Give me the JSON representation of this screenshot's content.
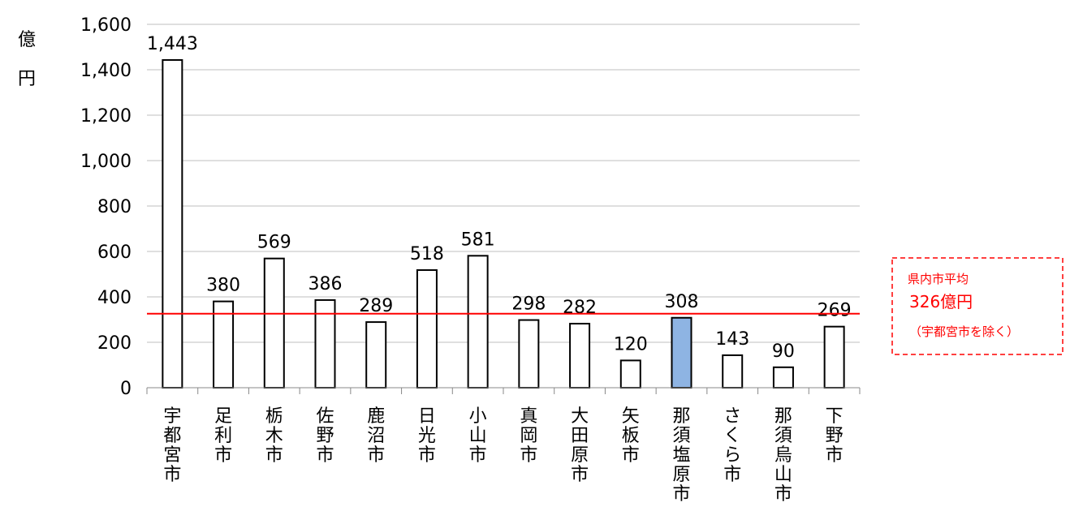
{
  "chart_data": {
    "type": "bar",
    "categories": [
      "宇都宮市",
      "足利市",
      "栃木市",
      "佐野市",
      "鹿沼市",
      "日光市",
      "小山市",
      "真岡市",
      "大田原市",
      "矢板市",
      "那須塩原市",
      "さくら市",
      "那須烏山市",
      "下野市"
    ],
    "values": [
      1443,
      380,
      569,
      386,
      289,
      518,
      581,
      298,
      282,
      120,
      308,
      143,
      90,
      269
    ],
    "data_labels": [
      "1,443",
      "380",
      "569",
      "386",
      "289",
      "518",
      "581",
      "298",
      "282",
      "120",
      "308",
      "143",
      "90",
      "269"
    ],
    "highlight_category": "那須塩原市",
    "ylabel_chars": [
      "億",
      "円"
    ],
    "yticks": [
      0,
      200,
      400,
      600,
      800,
      1000,
      1200,
      1400,
      1600
    ],
    "ytick_labels": [
      "0",
      "200",
      "400",
      "600",
      "800",
      "1,000",
      "1,200",
      "1,400",
      "1,600"
    ],
    "ylim": [
      0,
      1600
    ],
    "grid": true,
    "average_line": {
      "value": 326,
      "label_line1": "県内市平均",
      "label_line2": "326億円",
      "label_line3": "（宇都宮市を除く）"
    },
    "colors": {
      "bar_fill": "#ffffff",
      "bar_stroke": "#000000",
      "highlight_fill": "#8eb4e3",
      "average_line": "#ff0000",
      "grid": "#bfbfbf"
    }
  }
}
